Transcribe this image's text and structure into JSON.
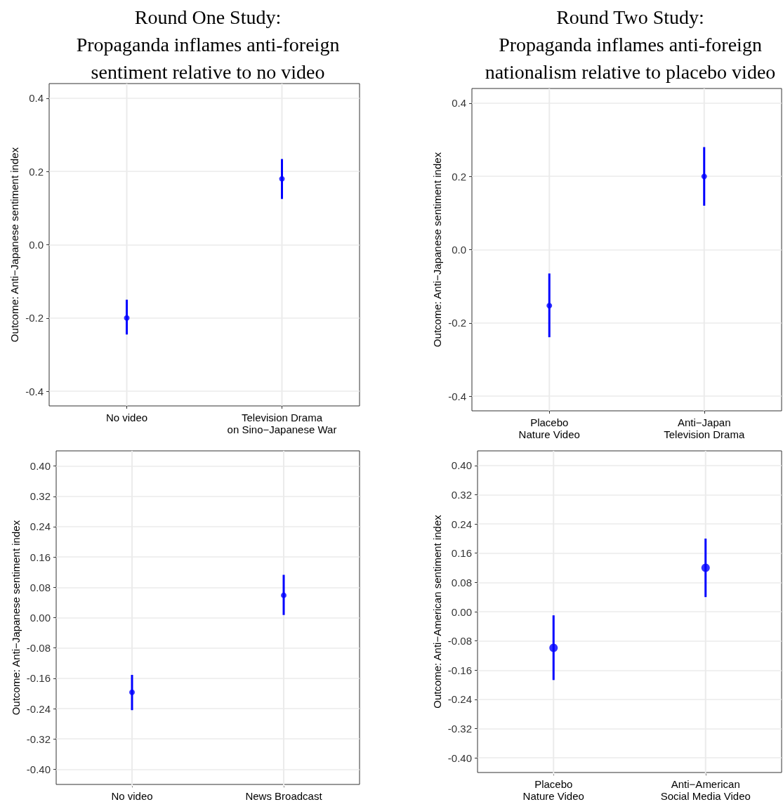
{
  "chart_data": [
    {
      "type": "scatter",
      "title": "Round One Study:\nPropaganda inflames anti-foreign\nsentiment relative to no video",
      "ylabel": "Outcome: Anti−Japanese sentiment index",
      "categories": [
        "No video",
        "Television Drama\non Sino−Japanese War"
      ],
      "values": [
        -0.2,
        0.18
      ],
      "errors": [
        [
          -0.245,
          -0.15
        ],
        [
          0.125,
          0.234
        ]
      ],
      "color": "#0000ff",
      "marker": "circle",
      "ylim": [
        -0.44,
        0.44
      ],
      "yticks": [
        -0.4,
        -0.2,
        {
          "value": 0,
          "label": "0.0"
        },
        0.2,
        0.4
      ],
      "grid": true
    },
    {
      "type": "scatter",
      "title": "Round Two Study:\nPropaganda inflames anti-foreign\nnationalism relative to placebo video",
      "ylabel": "Outcome: Anti−Japanese sentiment index",
      "categories": [
        "Placebo\nNature Video",
        "Anti−Japan\nTelevision Drama"
      ],
      "values": [
        -0.153,
        0.2
      ],
      "errors": [
        [
          -0.239,
          -0.065
        ],
        [
          0.12,
          0.28
        ]
      ],
      "color": "#0000ff",
      "marker": "circle",
      "ylim": [
        -0.44,
        0.44
      ],
      "yticks": [
        -0.4,
        -0.2,
        {
          "value": 0,
          "label": "0.0"
        },
        0.2,
        0.4
      ],
      "grid": true
    },
    {
      "type": "scatter",
      "ylabel": "Outcome: Anti−Japanese sentiment index",
      "categories": [
        "No video",
        "News Broadcast"
      ],
      "values": [
        -0.197,
        0.059
      ],
      "errors": [
        [
          -0.244,
          -0.151
        ],
        [
          0.007,
          0.113
        ]
      ],
      "color": "#0000ff",
      "marker": "circle",
      "ylim": [
        -0.44,
        0.44
      ],
      "yticks": [
        {
          "value": -0.4,
          "label": "-0.40"
        },
        {
          "value": -0.32,
          "label": "-0.32"
        },
        {
          "value": -0.24,
          "label": "-0.24"
        },
        {
          "value": -0.16,
          "label": "-0.16"
        },
        {
          "value": -0.08,
          "label": "-0.08"
        },
        {
          "value": 0,
          "label": "0.00"
        },
        {
          "value": 0.08,
          "label": "0.08"
        },
        {
          "value": 0.16,
          "label": "0.16"
        },
        {
          "value": 0.24,
          "label": "0.24"
        },
        {
          "value": 0.32,
          "label": "0.32"
        },
        {
          "value": 0.4,
          "label": "0.40"
        }
      ],
      "grid": true
    },
    {
      "type": "scatter",
      "ylabel": "Outcome: Anti−American sentiment index",
      "categories": [
        "Placebo\nNature Video",
        "Anti−American\nSocial Media Video"
      ],
      "values": [
        -0.099,
        0.12
      ],
      "errors": [
        [
          -0.187,
          -0.01
        ],
        [
          0.04,
          0.2
        ]
      ],
      "color": "#0000ff",
      "marker": "circle",
      "ylim": [
        -0.44,
        0.44
      ],
      "yticks": [
        {
          "value": -0.4,
          "label": "-0.40"
        },
        {
          "value": -0.32,
          "label": "-0.32"
        },
        {
          "value": -0.24,
          "label": "-0.24"
        },
        {
          "value": -0.16,
          "label": "-0.16"
        },
        {
          "value": -0.08,
          "label": "-0.08"
        },
        {
          "value": 0,
          "label": "0.00"
        },
        {
          "value": 0.08,
          "label": "0.08"
        },
        {
          "value": 0.16,
          "label": "0.16"
        },
        {
          "value": 0.24,
          "label": "0.24"
        },
        {
          "value": 0.32,
          "label": "0.32"
        },
        {
          "value": 0.4,
          "label": "0.40"
        }
      ],
      "grid": true
    }
  ]
}
